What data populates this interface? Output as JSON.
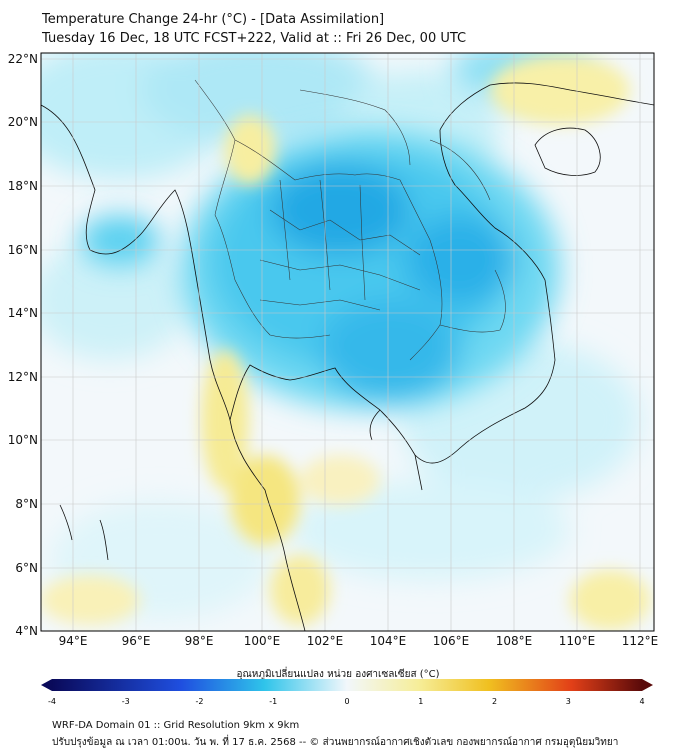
{
  "title": {
    "line1": "Temperature Change 24-hr (°C) - [Data Assimilation]",
    "line2": "Tuesday 16 Dec, 18 UTC FCST+222, Valid at :: Fri 26 Dec, 00 UTC"
  },
  "map": {
    "lat_labels": [
      "22°N",
      "20°N",
      "18°N",
      "16°N",
      "14°N",
      "12°N",
      "10°N",
      "8°N",
      "6°N",
      "4°N"
    ],
    "lon_labels": [
      "94°E",
      "96°E",
      "98°E",
      "100°E",
      "102°E",
      "104°E",
      "106°E",
      "108°E",
      "110°E",
      "112°E"
    ],
    "lat_range": [
      4,
      22
    ],
    "lon_range": [
      93,
      112.5
    ]
  },
  "colorbar": {
    "label": "อุณหภูมิเปลี่ยนแปลง หน่วย องศาเซลเซียส (°C)",
    "ticks": [
      "-4",
      "-3",
      "-2",
      "-1",
      "0",
      "1",
      "2",
      "3",
      "4"
    ],
    "range": [
      -4,
      4
    ],
    "colors": {
      "cold_dark": "#0a0a5a",
      "cold": "#1f4fe0",
      "cool": "#2fc4ea",
      "neutral": "#f2f7fb",
      "warm_light": "#f6ee9a",
      "warm": "#f0c020",
      "hot": "#e24018",
      "hot_dark": "#5a0a0a"
    }
  },
  "footer": {
    "line1": "WRF-DA Domain 01 :: Grid Resolution 9km x 9km",
    "line2": "ปรับปรุงข้อมูล ณ เวลา 01:00น. วัน พ. ที่ 17 ธ.ค. 2568 -- © ส่วนพยากรณ์อากาศเชิงตัวเลข กองพยากรณ์อากาศ กรมอุตุนิยมวิทยา"
  }
}
